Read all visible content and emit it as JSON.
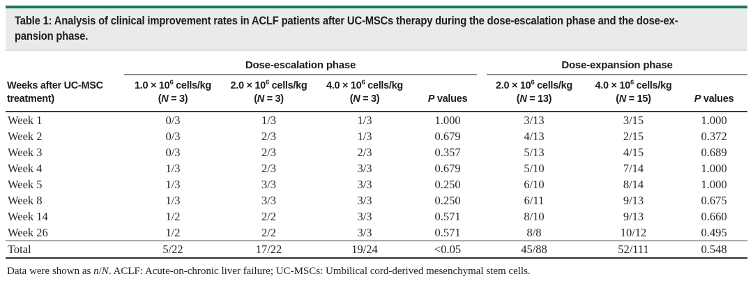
{
  "caption": {
    "line1": "Table 1: Analysis of clinical improvement rates in ACLF patients after UC-MSCs therapy during the dose-escalation phase and the dose-ex-",
    "line2": "pansion phase.",
    "full_text": "Table 1: Analysis of clinical improvement rates in ACLF patients after UC-MSCs therapy during the dose-escalation phase and the dose-expansion phase."
  },
  "table": {
    "row_header_html": "Weeks after UC-MSC<br>treatment)",
    "groups": [
      {
        "label": "Dose-escalation phase"
      },
      {
        "label": "Dose-expansion phase"
      }
    ],
    "col_headers": [
      "1.0 × 10<sup>6</sup> cells/kg<br>(<i>N</i> = 3)",
      "2.0 × 10<sup>6</sup> cells/kg<br>(<i>N</i> = 3)",
      "4.0 × 10<sup>6</sup> cells/kg<br>(<i>N</i> = 3)",
      "<i>P</i> values",
      "2.0 × 10<sup>6</sup> cells/kg<br>(<i>N</i> = 13)",
      "4.0 × 10<sup>6</sup> cells/kg<br>(<i>N</i> = 15)",
      "<i>P</i> values"
    ],
    "rows": [
      {
        "label": "Week 1",
        "cells": [
          "0/3",
          "1/3",
          "1/3",
          "1.000",
          "3/13",
          "3/15",
          "1.000"
        ]
      },
      {
        "label": "Week 2",
        "cells": [
          "0/3",
          "2/3",
          "1/3",
          "0.679",
          "4/13",
          "2/15",
          "0.372"
        ]
      },
      {
        "label": "Week 3",
        "cells": [
          "0/3",
          "2/3",
          "2/3",
          "0.357",
          "5/13",
          "4/15",
          "0.689"
        ]
      },
      {
        "label": "Week 4",
        "cells": [
          "1/3",
          "2/3",
          "3/3",
          "0.679",
          "5/10",
          "7/14",
          "1.000"
        ]
      },
      {
        "label": "Week 5",
        "cells": [
          "1/3",
          "3/3",
          "3/3",
          "0.250",
          "6/10",
          "8/14",
          "1.000"
        ]
      },
      {
        "label": "Week 8",
        "cells": [
          "1/3",
          "3/3",
          "3/3",
          "0.250",
          "6/11",
          "9/13",
          "0.675"
        ]
      },
      {
        "label": "Week 14",
        "cells": [
          "1/2",
          "2/2",
          "3/3",
          "0.571",
          "8/10",
          "9/13",
          "0.660"
        ]
      },
      {
        "label": "Week 26",
        "cells": [
          "1/2",
          "2/2",
          "3/3",
          "0.571",
          "8/8",
          "10/12",
          "0.495"
        ]
      }
    ],
    "total": {
      "label": "Total",
      "cells": [
        "5/22",
        "17/22",
        "19/24",
        "<0.05",
        "45/88",
        "52/111",
        "0.548"
      ]
    }
  },
  "footnote_html": "Data were shown as <i>n</i>/<i>N</i>. ACLF: Acute-on-chronic liver failure; UC-MSCs: Umbilical cord-derived mesenchymal stem cells.",
  "colors": {
    "accent_green": "#177a50",
    "caption_bg": "#e8ebe9",
    "rule_gray": "#8c8c8c",
    "rule_dark": "#2f2f2f",
    "text_dark": "#1d1d1d"
  }
}
